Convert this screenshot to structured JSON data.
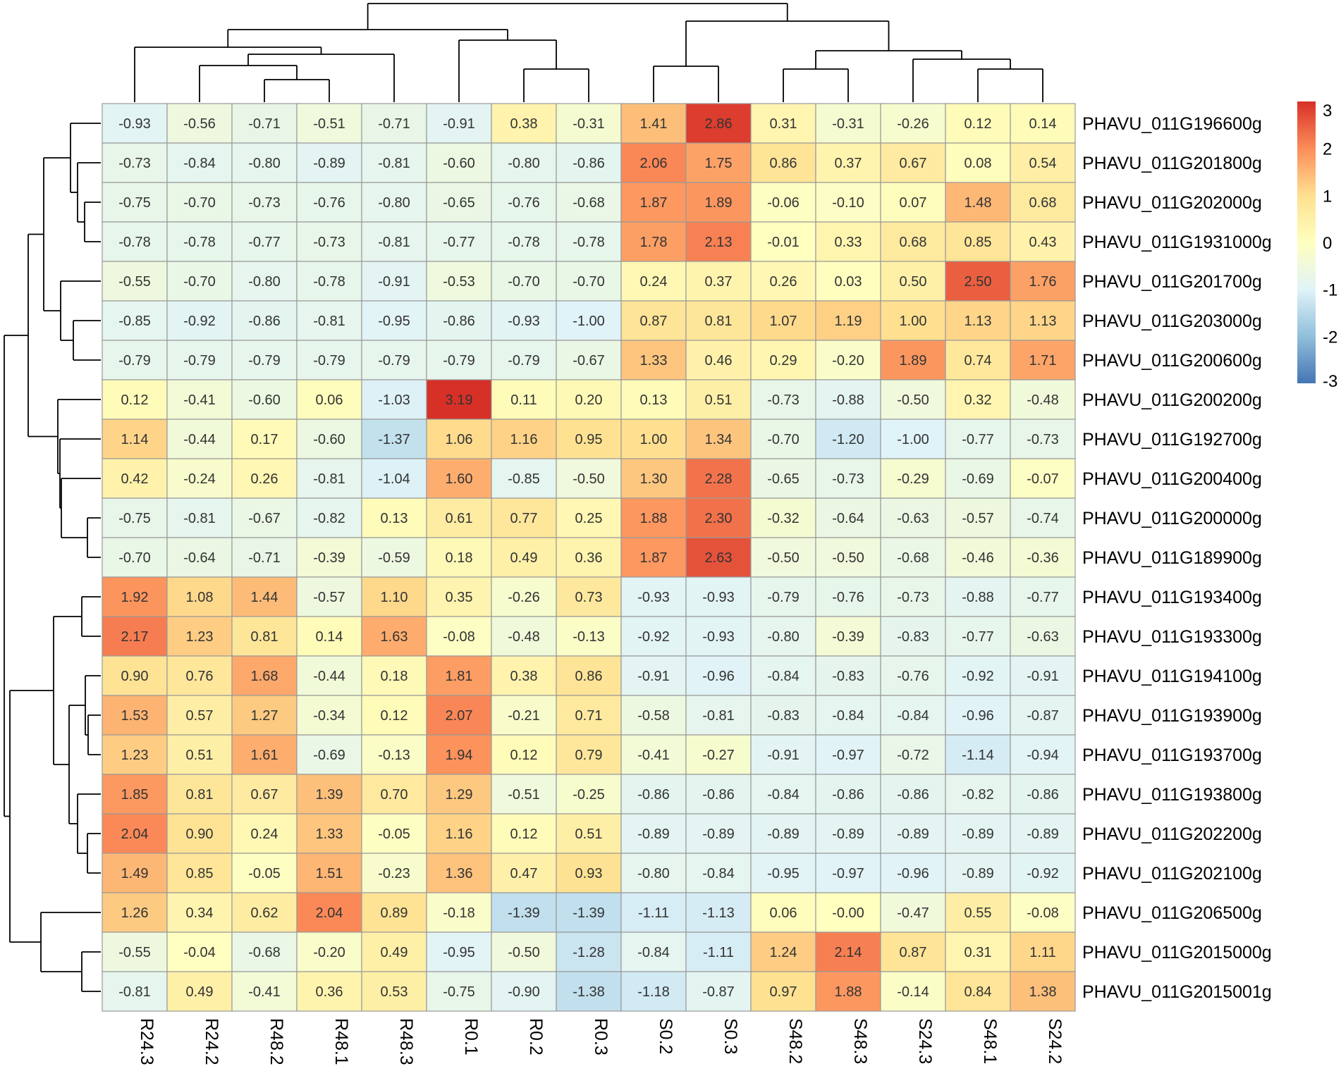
{
  "chart_data": {
    "type": "heatmap",
    "columns": [
      "R24.3",
      "R24.2",
      "R48.2",
      "R48.1",
      "R48.3",
      "R0.1",
      "R0.2",
      "R0.3",
      "S0.2",
      "S0.3",
      "S48.2",
      "S48.3",
      "S24.3",
      "S48.1",
      "S24.2"
    ],
    "rows": [
      "PHAVU_011G196600g",
      "PHAVU_011G201800g",
      "PHAVU_011G202000g",
      "PHAVU_011G1931000g",
      "PHAVU_011G201700g",
      "PHAVU_011G203000g",
      "PHAVU_011G200600g",
      "PHAVU_011G200200g",
      "PHAVU_011G192700g",
      "PHAVU_011G200400g",
      "PHAVU_011G200000g",
      "PHAVU_011G189900g",
      "PHAVU_011G193400g",
      "PHAVU_011G193300g",
      "PHAVU_011G194100g",
      "PHAVU_011G193900g",
      "PHAVU_011G193700g",
      "PHAVU_011G193800g",
      "PHAVU_011G202200g",
      "PHAVU_011G202100g",
      "PHAVU_011G206500g",
      "PHAVU_011G2015000g",
      "PHAVU_011G2015001g"
    ],
    "values": [
      [
        -0.93,
        -0.56,
        -0.71,
        -0.51,
        -0.71,
        -0.91,
        0.38,
        -0.31,
        1.41,
        2.86,
        0.31,
        -0.31,
        -0.26,
        0.12,
        0.14
      ],
      [
        -0.73,
        -0.84,
        -0.8,
        -0.89,
        -0.81,
        -0.6,
        -0.8,
        -0.86,
        2.06,
        1.75,
        0.86,
        0.37,
        0.67,
        0.08,
        0.54
      ],
      [
        -0.75,
        -0.7,
        -0.73,
        -0.76,
        -0.8,
        -0.65,
        -0.76,
        -0.68,
        1.87,
        1.89,
        -0.06,
        -0.1,
        0.07,
        1.48,
        0.68
      ],
      [
        -0.78,
        -0.78,
        -0.77,
        -0.73,
        -0.81,
        -0.77,
        -0.78,
        -0.78,
        1.78,
        2.13,
        -0.01,
        0.33,
        0.68,
        0.85,
        0.43
      ],
      [
        -0.55,
        -0.7,
        -0.8,
        -0.78,
        -0.91,
        -0.53,
        -0.7,
        -0.7,
        0.24,
        0.37,
        0.26,
        0.03,
        0.5,
        2.5,
        1.76
      ],
      [
        -0.85,
        -0.92,
        -0.86,
        -0.81,
        -0.95,
        -0.86,
        -0.93,
        -1.0,
        0.87,
        0.81,
        1.07,
        1.19,
        1.0,
        1.13,
        1.13
      ],
      [
        -0.79,
        -0.79,
        -0.79,
        -0.79,
        -0.79,
        -0.79,
        -0.79,
        -0.67,
        1.33,
        0.46,
        0.29,
        -0.2,
        1.89,
        0.74,
        1.71
      ],
      [
        0.12,
        -0.41,
        -0.6,
        0.06,
        -1.03,
        3.19,
        0.11,
        0.2,
        0.13,
        0.51,
        -0.73,
        -0.88,
        -0.5,
        0.32,
        -0.48
      ],
      [
        1.14,
        -0.44,
        0.17,
        -0.6,
        -1.37,
        1.06,
        1.16,
        0.95,
        1.0,
        1.34,
        -0.7,
        -1.2,
        -1.0,
        -0.77,
        -0.73
      ],
      [
        0.42,
        -0.24,
        0.26,
        -0.81,
        -1.04,
        1.6,
        -0.85,
        -0.5,
        1.3,
        2.28,
        -0.65,
        -0.73,
        -0.29,
        -0.69,
        -0.07
      ],
      [
        -0.75,
        -0.81,
        -0.67,
        -0.82,
        0.13,
        0.61,
        0.77,
        0.25,
        1.88,
        2.3,
        -0.32,
        -0.64,
        -0.63,
        -0.57,
        -0.74
      ],
      [
        -0.7,
        -0.64,
        -0.71,
        -0.39,
        -0.59,
        0.18,
        0.49,
        0.36,
        1.87,
        2.63,
        -0.5,
        -0.5,
        -0.68,
        -0.46,
        -0.36
      ],
      [
        1.92,
        1.08,
        1.44,
        -0.57,
        1.1,
        0.35,
        -0.26,
        0.73,
        -0.93,
        -0.93,
        -0.79,
        -0.76,
        -0.73,
        -0.88,
        -0.77
      ],
      [
        2.17,
        1.23,
        0.81,
        0.14,
        1.63,
        -0.08,
        -0.48,
        -0.13,
        -0.92,
        -0.93,
        -0.8,
        -0.39,
        -0.83,
        -0.77,
        -0.63
      ],
      [
        0.9,
        0.76,
        1.68,
        -0.44,
        0.18,
        1.81,
        0.38,
        0.86,
        -0.91,
        -0.96,
        -0.84,
        -0.83,
        -0.76,
        -0.92,
        -0.91
      ],
      [
        1.53,
        0.57,
        1.27,
        -0.34,
        0.12,
        2.07,
        -0.21,
        0.71,
        -0.58,
        -0.81,
        -0.83,
        -0.84,
        -0.84,
        -0.96,
        -0.87
      ],
      [
        1.23,
        0.51,
        1.61,
        -0.69,
        -0.13,
        1.94,
        0.12,
        0.79,
        -0.41,
        -0.27,
        -0.91,
        -0.97,
        -0.72,
        -1.14,
        -0.94
      ],
      [
        1.85,
        0.81,
        0.67,
        1.39,
        0.7,
        1.29,
        -0.51,
        -0.25,
        -0.86,
        -0.86,
        -0.84,
        -0.86,
        -0.86,
        -0.82,
        -0.86
      ],
      [
        2.04,
        0.9,
        0.24,
        1.33,
        -0.05,
        1.16,
        0.12,
        0.51,
        -0.89,
        -0.89,
        -0.89,
        -0.89,
        -0.89,
        -0.89,
        -0.89
      ],
      [
        1.49,
        0.85,
        -0.05,
        1.51,
        -0.23,
        1.36,
        0.47,
        0.93,
        -0.8,
        -0.84,
        -0.95,
        -0.97,
        -0.96,
        -0.89,
        -0.92
      ],
      [
        1.26,
        0.34,
        0.62,
        2.04,
        0.89,
        -0.18,
        -1.39,
        -1.39,
        -1.11,
        -1.13,
        0.06,
        -0.0,
        -0.47,
        0.55,
        -0.08
      ],
      [
        -0.55,
        -0.04,
        -0.68,
        -0.2,
        0.49,
        -0.95,
        -0.5,
        -1.28,
        -0.84,
        -1.11,
        1.24,
        2.14,
        0.87,
        0.31,
        1.11
      ],
      [
        -0.81,
        0.49,
        -0.41,
        0.36,
        0.53,
        -0.75,
        -0.9,
        -1.38,
        -1.18,
        -0.87,
        0.97,
        1.88,
        -0.14,
        0.84,
        1.38
      ]
    ],
    "value_labels": [
      [
        "-0.93",
        "-0.56",
        "-0.71",
        "-0.51",
        "-0.71",
        "-0.91",
        "0.38",
        "-0.31",
        "1.41",
        "2.86",
        "0.31",
        "-0.31",
        "-0.26",
        "0.12",
        "0.14"
      ],
      [
        "-0.73",
        "-0.84",
        "-0.80",
        "-0.89",
        "-0.81",
        "-0.60",
        "-0.80",
        "-0.86",
        "2.06",
        "1.75",
        "0.86",
        "0.37",
        "0.67",
        "0.08",
        "0.54"
      ],
      [
        "-0.75",
        "-0.70",
        "-0.73",
        "-0.76",
        "-0.80",
        "-0.65",
        "-0.76",
        "-0.68",
        "1.87",
        "1.89",
        "-0.06",
        "-0.10",
        "0.07",
        "1.48",
        "0.68"
      ],
      [
        "-0.78",
        "-0.78",
        "-0.77",
        "-0.73",
        "-0.81",
        "-0.77",
        "-0.78",
        "-0.78",
        "1.78",
        "2.13",
        "-0.01",
        "0.33",
        "0.68",
        "0.85",
        "0.43"
      ],
      [
        "-0.55",
        "-0.70",
        "-0.80",
        "-0.78",
        "-0.91",
        "-0.53",
        "-0.70",
        "-0.70",
        "0.24",
        "0.37",
        "0.26",
        "0.03",
        "0.50",
        "2.50",
        "1.76"
      ],
      [
        "-0.85",
        "-0.92",
        "-0.86",
        "-0.81",
        "-0.95",
        "-0.86",
        "-0.93",
        "-1.00",
        "0.87",
        "0.81",
        "1.07",
        "1.19",
        "1.00",
        "1.13",
        "1.13"
      ],
      [
        "-0.79",
        "-0.79",
        "-0.79",
        "-0.79",
        "-0.79",
        "-0.79",
        "-0.79",
        "-0.67",
        "1.33",
        "0.46",
        "0.29",
        "-0.20",
        "1.89",
        "0.74",
        "1.71"
      ],
      [
        "0.12",
        "-0.41",
        "-0.60",
        "0.06",
        "-1.03",
        "3.19",
        "0.11",
        "0.20",
        "0.13",
        "0.51",
        "-0.73",
        "-0.88",
        "-0.50",
        "0.32",
        "-0.48"
      ],
      [
        "1.14",
        "-0.44",
        "0.17",
        "-0.60",
        "-1.37",
        "1.06",
        "1.16",
        "0.95",
        "1.00",
        "1.34",
        "-0.70",
        "-1.20",
        "-1.00",
        "-0.77",
        "-0.73"
      ],
      [
        "0.42",
        "-0.24",
        "0.26",
        "-0.81",
        "-1.04",
        "1.60",
        "-0.85",
        "-0.50",
        "1.30",
        "2.28",
        "-0.65",
        "-0.73",
        "-0.29",
        "-0.69",
        "-0.07"
      ],
      [
        "-0.75",
        "-0.81",
        "-0.67",
        "-0.82",
        "0.13",
        "0.61",
        "0.77",
        "0.25",
        "1.88",
        "2.30",
        "-0.32",
        "-0.64",
        "-0.63",
        "-0.57",
        "-0.74"
      ],
      [
        "-0.70",
        "-0.64",
        "-0.71",
        "-0.39",
        "-0.59",
        "0.18",
        "0.49",
        "0.36",
        "1.87",
        "2.63",
        "-0.50",
        "-0.50",
        "-0.68",
        "-0.46",
        "-0.36"
      ],
      [
        "1.92",
        "1.08",
        "1.44",
        "-0.57",
        "1.10",
        "0.35",
        "-0.26",
        "0.73",
        "-0.93",
        "-0.93",
        "-0.79",
        "-0.76",
        "-0.73",
        "-0.88",
        "-0.77"
      ],
      [
        "2.17",
        "1.23",
        "0.81",
        "0.14",
        "1.63",
        "-0.08",
        "-0.48",
        "-0.13",
        "-0.92",
        "-0.93",
        "-0.80",
        "-0.39",
        "-0.83",
        "-0.77",
        "-0.63"
      ],
      [
        "0.90",
        "0.76",
        "1.68",
        "-0.44",
        "0.18",
        "1.81",
        "0.38",
        "0.86",
        "-0.91",
        "-0.96",
        "-0.84",
        "-0.83",
        "-0.76",
        "-0.92",
        "-0.91"
      ],
      [
        "1.53",
        "0.57",
        "1.27",
        "-0.34",
        "0.12",
        "2.07",
        "-0.21",
        "0.71",
        "-0.58",
        "-0.81",
        "-0.83",
        "-0.84",
        "-0.84",
        "-0.96",
        "-0.87"
      ],
      [
        "1.23",
        "0.51",
        "1.61",
        "-0.69",
        "-0.13",
        "1.94",
        "0.12",
        "0.79",
        "-0.41",
        "-0.27",
        "-0.91",
        "-0.97",
        "-0.72",
        "-1.14",
        "-0.94"
      ],
      [
        "1.85",
        "0.81",
        "0.67",
        "1.39",
        "0.70",
        "1.29",
        "-0.51",
        "-0.25",
        "-0.86",
        "-0.86",
        "-0.84",
        "-0.86",
        "-0.86",
        "-0.82",
        "-0.86"
      ],
      [
        "2.04",
        "0.90",
        "0.24",
        "1.33",
        "-0.05",
        "1.16",
        "0.12",
        "0.51",
        "-0.89",
        "-0.89",
        "-0.89",
        "-0.89",
        "-0.89",
        "-0.89",
        "-0.89"
      ],
      [
        "1.49",
        "0.85",
        "-0.05",
        "1.51",
        "-0.23",
        "1.36",
        "0.47",
        "0.93",
        "-0.80",
        "-0.84",
        "-0.95",
        "-0.97",
        "-0.96",
        "-0.89",
        "-0.92"
      ],
      [
        "1.26",
        "0.34",
        "0.62",
        "2.04",
        "0.89",
        "-0.18",
        "-1.39",
        "-1.39",
        "-1.11",
        "-1.13",
        "0.06",
        "-0.00",
        "-0.47",
        "0.55",
        "-0.08"
      ],
      [
        "-0.55",
        "-0.04",
        "-0.68",
        "-0.20",
        "0.49",
        "-0.95",
        "-0.50",
        "-1.28",
        "-0.84",
        "-1.11",
        "1.24",
        "2.14",
        "0.87",
        "0.31",
        "1.11"
      ],
      [
        "-0.81",
        "0.49",
        "-0.41",
        "0.36",
        "0.53",
        "-0.75",
        "-0.90",
        "-1.38",
        "-1.18",
        "-0.87",
        "0.97",
        "1.88",
        "-0.14",
        "0.84",
        "1.38"
      ]
    ],
    "color_scale": {
      "min": -3,
      "max": 3,
      "stops": [
        {
          "value": -3,
          "color": "#4575b4"
        },
        {
          "value": -2,
          "color": "#91bfdb"
        },
        {
          "value": -1,
          "color": "#e0f3f8"
        },
        {
          "value": 0,
          "color": "#ffffbf"
        },
        {
          "value": 1,
          "color": "#fee090"
        },
        {
          "value": 2,
          "color": "#fc8d59"
        },
        {
          "value": 3,
          "color": "#d73027"
        }
      ],
      "ticks": [
        "3",
        "2",
        "1",
        "0",
        "-1",
        "-2",
        "-3"
      ],
      "tick_values": [
        3,
        2,
        1,
        0,
        -1,
        -2,
        -3
      ]
    },
    "column_dendrogram": [
      [
        2,
        3,
        0.12
      ],
      [
        1,
        16,
        0.26
      ],
      [
        0,
        17,
        0.38
      ],
      [
        6,
        7,
        0.16
      ],
      [
        5,
        19,
        0.4
      ],
      [
        15,
        18,
        0.5
      ],
      [
        4,
        21,
        0.66
      ],
      [
        22,
        20,
        0.58
      ],
      [
        14,
        13,
        0.12
      ],
      [
        10,
        11,
        0.18
      ],
      [
        24,
        12,
        0.3
      ],
      [
        8,
        9,
        0.3
      ],
      [
        26,
        25,
        0.52
      ],
      [
        27,
        23,
        1.0
      ],
      [
        28,
        21,
        0.0
      ]
    ],
    "grid": false,
    "title": "",
    "xlabel": "",
    "ylabel": ""
  }
}
